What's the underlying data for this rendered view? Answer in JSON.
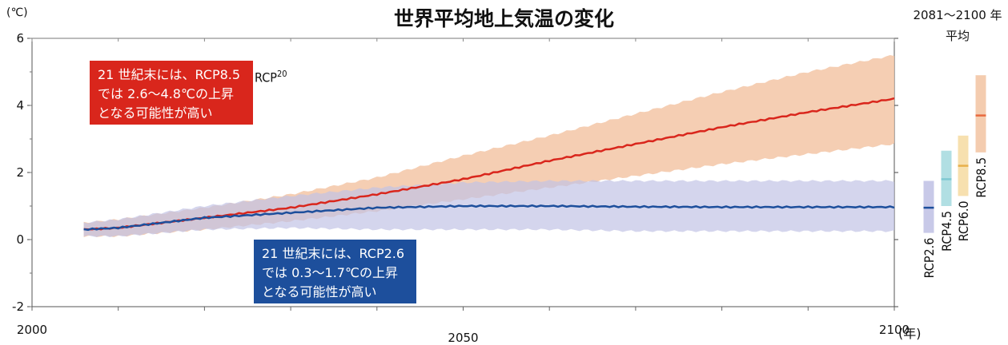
{
  "title": "世界平均地上気温の変化",
  "y_unit": "(℃)",
  "x_unit": "(年)",
  "period_note": [
    "2081〜2100 年",
    "平均"
  ],
  "stray_label": {
    "base": "RCP",
    "sup": "20"
  },
  "callouts": {
    "rcp85": [
      "21 世紀末には、RCP8.5",
      "では 2.6〜4.8℃の上昇",
      "となる可能性が高い"
    ],
    "rcp26": [
      "21 世紀末には、RCP2.6",
      "では 0.3〜1.7℃の上昇",
      "となる可能性が高い"
    ]
  },
  "colors": {
    "rcp85_line": "#d9261c",
    "rcp85_band": "#f3c6a6",
    "rcp26_line": "#1d4f9c",
    "rcp26_band": "#c2c3e6",
    "rcp45": "#a8dbe0",
    "rcp60": "#f6dda6"
  },
  "chart_data": {
    "type": "line",
    "xlim": [
      2000,
      2100
    ],
    "ylim": [
      -2,
      6
    ],
    "x_ticks": [
      2000,
      2050,
      2100
    ],
    "y_ticks": [
      -2,
      0,
      2,
      4,
      6
    ],
    "grid": false,
    "series": [
      {
        "name": "RCP8.5",
        "x": [
          2006,
          2010,
          2020,
          2030,
          2040,
          2050,
          2060,
          2070,
          2080,
          2090,
          2100
        ],
        "mean": [
          0.3,
          0.35,
          0.65,
          0.95,
          1.35,
          1.8,
          2.35,
          2.85,
          3.35,
          3.8,
          4.2
        ],
        "low": [
          0.1,
          0.1,
          0.3,
          0.55,
          0.85,
          1.2,
          1.55,
          1.9,
          2.25,
          2.55,
          2.85
        ],
        "high": [
          0.5,
          0.6,
          0.95,
          1.35,
          1.85,
          2.5,
          3.1,
          3.75,
          4.4,
          5.0,
          5.5
        ]
      },
      {
        "name": "RCP2.6",
        "x": [
          2006,
          2010,
          2020,
          2030,
          2040,
          2050,
          2060,
          2070,
          2080,
          2090,
          2100
        ],
        "mean": [
          0.3,
          0.35,
          0.65,
          0.8,
          0.95,
          1.0,
          1.0,
          0.98,
          0.97,
          0.97,
          0.97
        ],
        "low": [
          0.1,
          0.1,
          0.3,
          0.35,
          0.3,
          0.3,
          0.3,
          0.25,
          0.25,
          0.25,
          0.25
        ],
        "high": [
          0.5,
          0.6,
          1.0,
          1.3,
          1.55,
          1.7,
          1.75,
          1.75,
          1.75,
          1.75,
          1.75
        ]
      }
    ],
    "period_bars": [
      {
        "name": "RCP2.6",
        "low": 0.2,
        "high": 1.75,
        "mean": 0.95
      },
      {
        "name": "RCP4.5",
        "low": 1.0,
        "high": 2.65,
        "mean": 1.8
      },
      {
        "name": "RCP6.0",
        "low": 1.3,
        "high": 3.1,
        "mean": 2.2
      },
      {
        "name": "RCP8.5",
        "low": 2.6,
        "high": 4.9,
        "mean": 3.7
      }
    ]
  }
}
